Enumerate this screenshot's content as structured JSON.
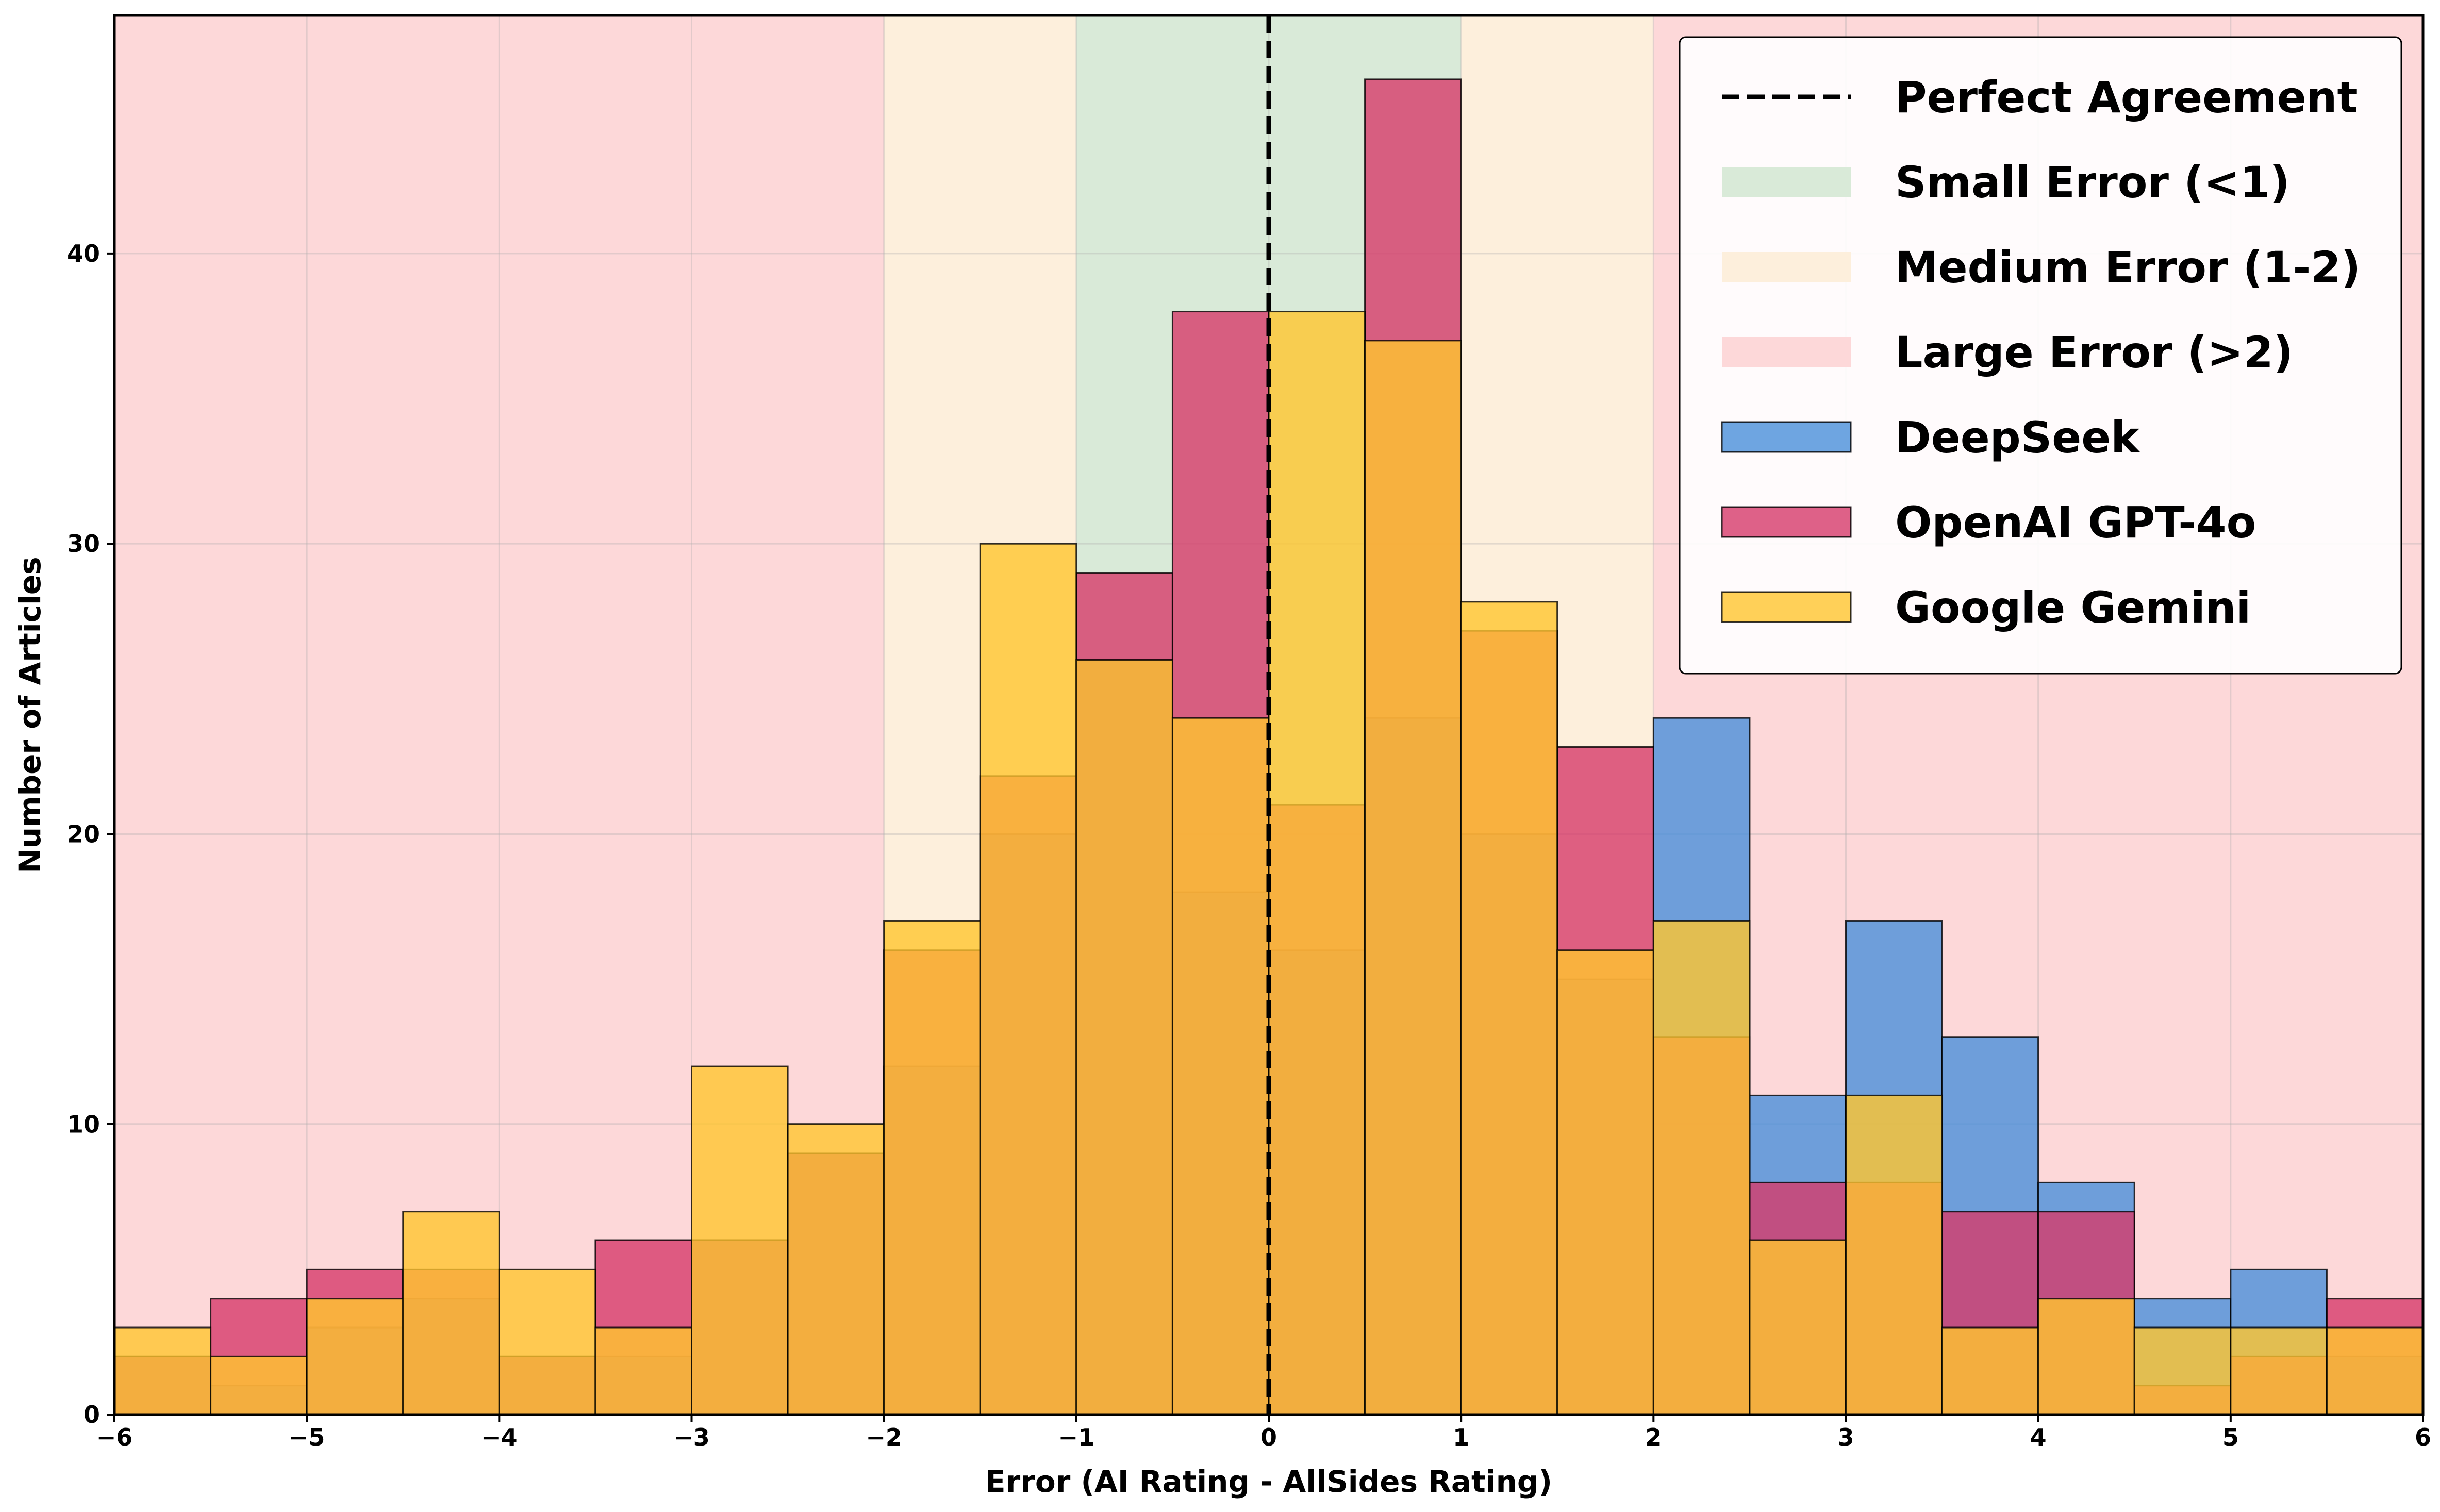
{
  "chart_data": {
    "type": "bar",
    "xlabel": "Error (AI Rating - AllSides Rating)",
    "ylabel": "Number of Articles",
    "xlim": [
      -6,
      6
    ],
    "ylim": [
      0,
      48.2
    ],
    "x_ticks": [
      -6,
      -5,
      -4,
      -3,
      -2,
      -1,
      0,
      1,
      2,
      3,
      4,
      5,
      6
    ],
    "x_tick_labels": [
      "−6",
      "−5",
      "−4",
      "−3",
      "−2",
      "−1",
      "0",
      "1",
      "2",
      "3",
      "4",
      "5",
      "6"
    ],
    "y_ticks": [
      0,
      10,
      20,
      30,
      40
    ],
    "y_tick_labels": [
      "0",
      "10",
      "20",
      "30",
      "40"
    ],
    "grid": true,
    "legend_position": "top-right",
    "bin_edges": [
      -6,
      -5.5,
      -5,
      -4.5,
      -4,
      -3.5,
      -3,
      -2.5,
      -2,
      -1.5,
      -1,
      -0.5,
      0,
      0.5,
      1,
      1.5,
      2,
      2.5,
      3,
      3.5,
      4,
      4.5,
      5,
      5.5,
      6
    ],
    "reference_line": {
      "name": "Perfect Agreement",
      "x": 0,
      "color": "#000000"
    },
    "regions": [
      {
        "name": "Small Error (<1)",
        "ranges": [
          [
            -1,
            1
          ]
        ],
        "color": "#d9ead8"
      },
      {
        "name": "Medium Error (1-2)",
        "ranges": [
          [
            -2,
            -1
          ],
          [
            1,
            2
          ]
        ],
        "color": "#fdefdc"
      },
      {
        "name": "Large Error (>2)",
        "ranges": [
          [
            -6,
            -2
          ],
          [
            2,
            6
          ]
        ],
        "color": "#fdd8d9"
      }
    ],
    "series": [
      {
        "name": "DeepSeek",
        "color": "#4a90d9",
        "values": [
          2,
          1,
          3,
          4,
          2,
          2,
          6,
          9,
          12,
          20,
          26,
          18,
          16,
          24,
          20,
          15,
          24,
          11,
          17,
          13,
          8,
          4,
          5,
          2
        ]
      },
      {
        "name": "OpenAI GPT-4o",
        "color": "#d63b6a",
        "values": [
          2,
          4,
          5,
          5,
          2,
          6,
          6,
          9,
          16,
          22,
          29,
          38,
          21,
          46,
          27,
          23,
          13,
          8,
          8,
          7,
          7,
          1,
          2,
          4
        ]
      },
      {
        "name": "Google Gemini",
        "color": "#ffc52e",
        "values": [
          3,
          2,
          4,
          7,
          5,
          3,
          12,
          10,
          17,
          30,
          26,
          24,
          38,
          37,
          28,
          16,
          17,
          6,
          11,
          3,
          4,
          3,
          3,
          3
        ]
      }
    ]
  }
}
